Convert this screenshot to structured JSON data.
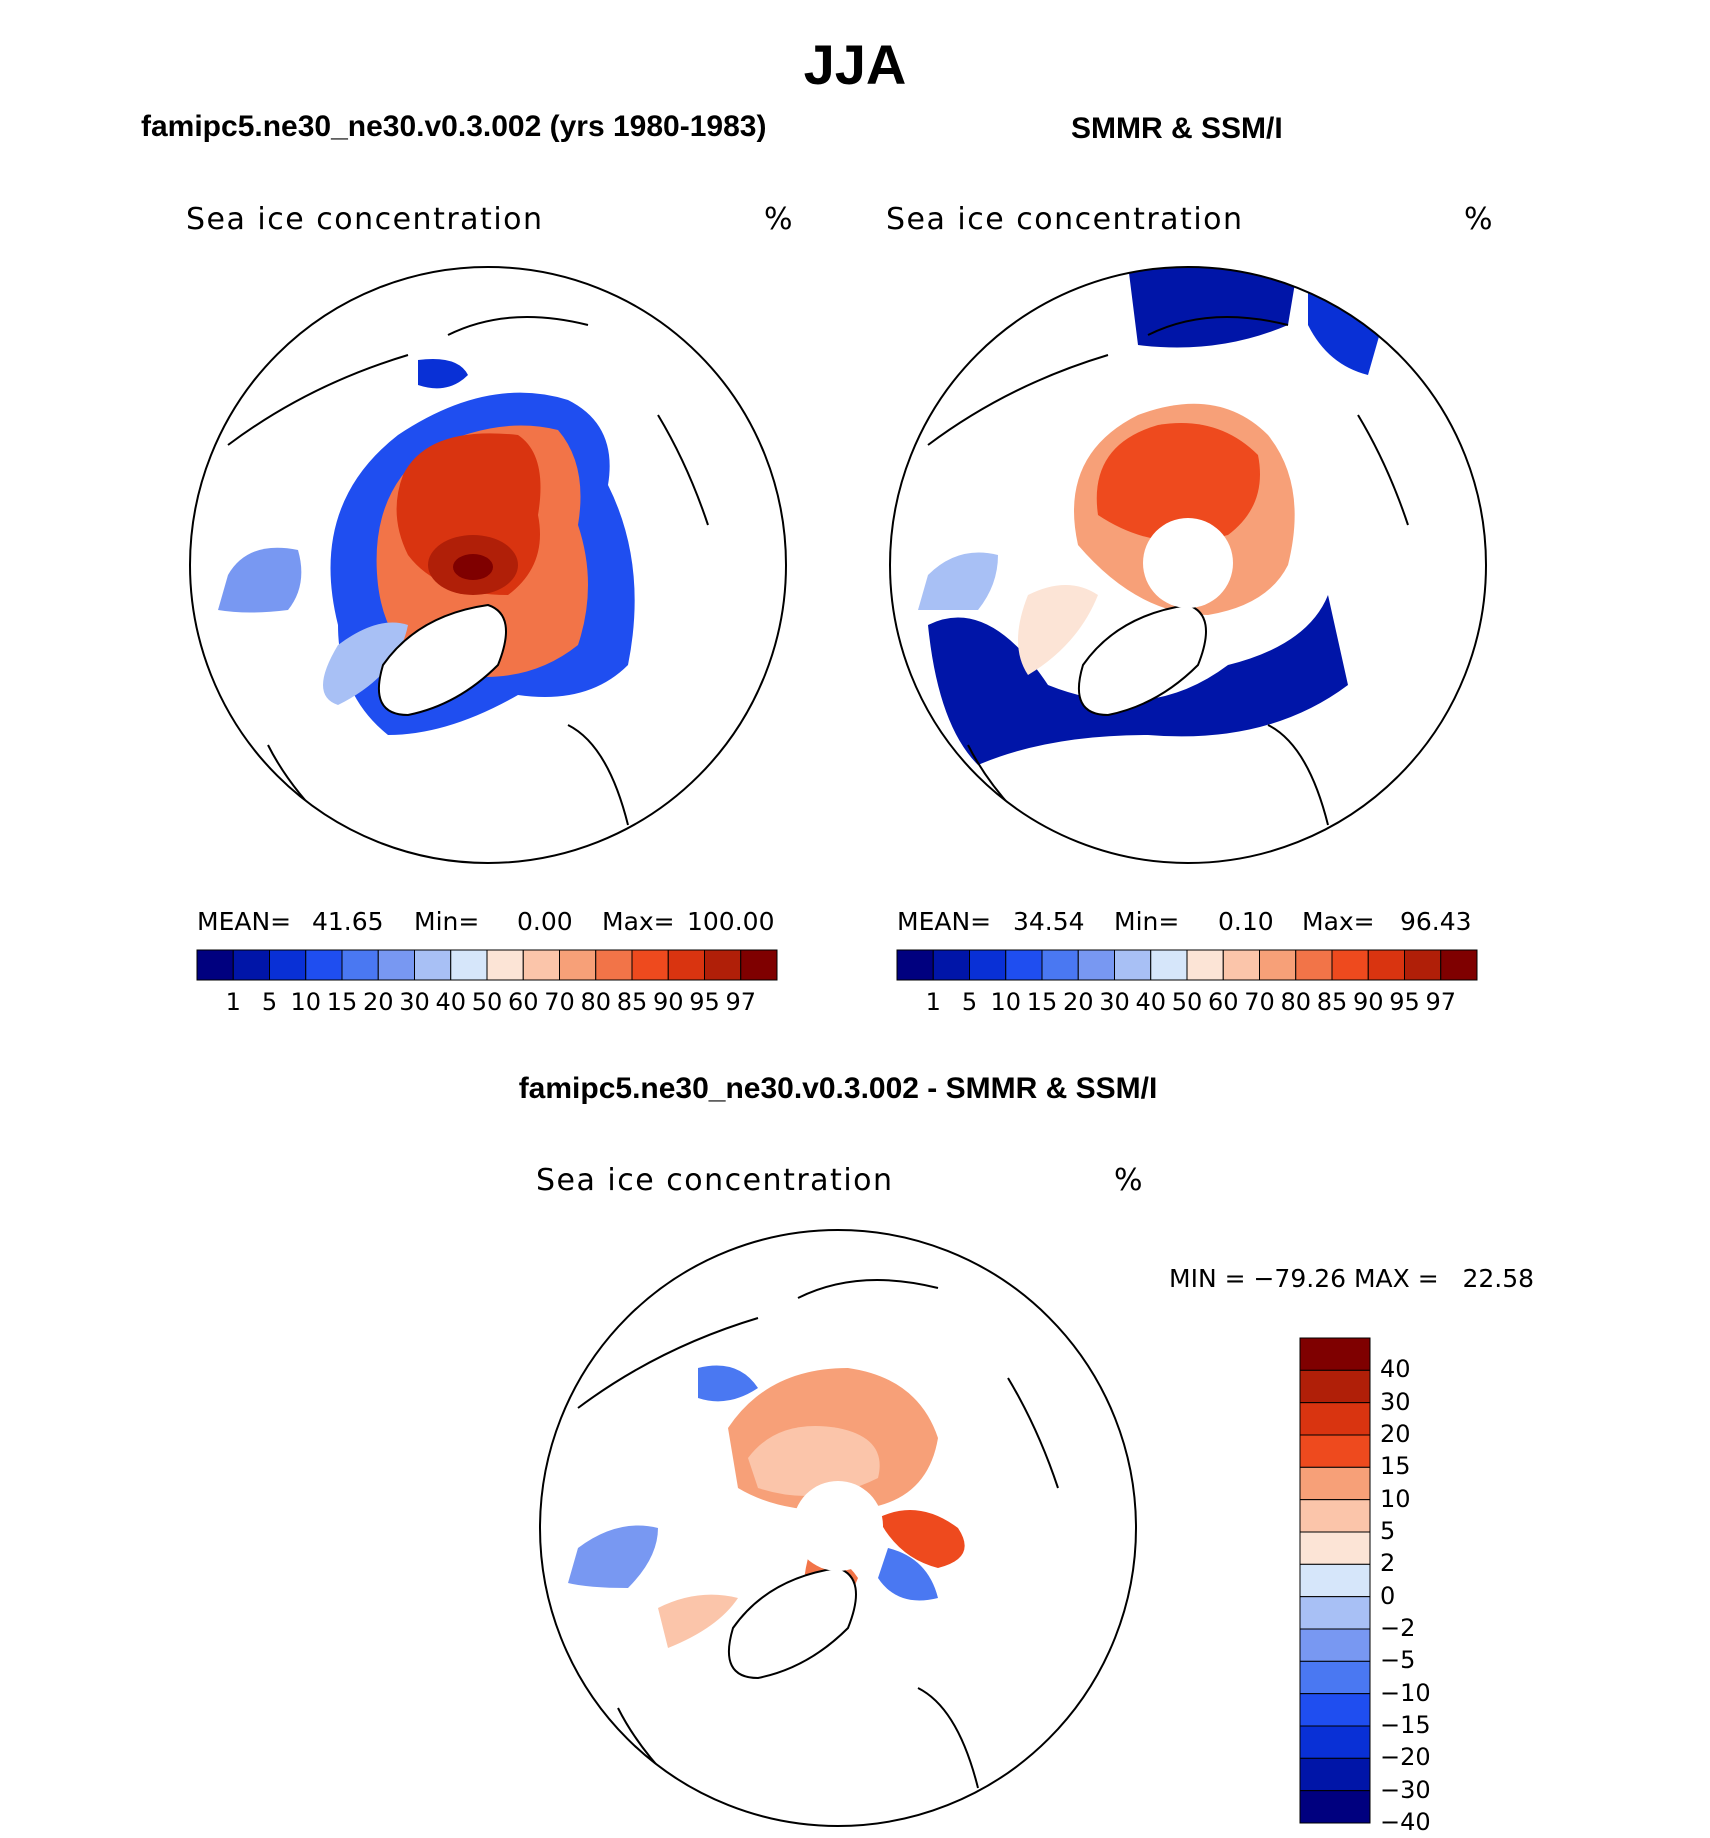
{
  "main_title": "JJA",
  "panels": [
    {
      "title": "famipc5.ne30_ne30.v0.3.002 (yrs 1980-1983)",
      "variable": "Sea ice concentration",
      "units": "%",
      "stats": {
        "mean_label": "MEAN=",
        "mean": "41.65",
        "min_label": "Min=",
        "min": "0.00",
        "max_label": "Max=",
        "max": "100.00"
      }
    },
    {
      "title": "SMMR & SSM/I",
      "variable": "Sea ice concentration",
      "units": "%",
      "stats": {
        "mean_label": "MEAN=",
        "mean": "34.54",
        "min_label": "Min=",
        "min": "0.10",
        "max_label": "Max=",
        "max": "96.43"
      }
    },
    {
      "title": "famipc5.ne30_ne30.v0.3.002 - SMMR & SSM/I",
      "variable": "Sea ice concentration",
      "units": "%",
      "stats": {
        "text": "MIN = −79.26 MAX =   22.58"
      }
    }
  ],
  "colorbar_abs": {
    "colors": [
      "#00007f",
      "#0015a8",
      "#0930d6",
      "#1f4ef0",
      "#4a78f2",
      "#7898f2",
      "#a8c0f5",
      "#d6e6fa",
      "#fce4d6",
      "#fbc5aa",
      "#f7a078",
      "#f27448",
      "#ee4a1e",
      "#d93410",
      "#b01f08",
      "#7f0000"
    ],
    "ticks": [
      "1",
      "5",
      "10",
      "15",
      "20",
      "30",
      "40",
      "50",
      "60",
      "70",
      "80",
      "85",
      "90",
      "95",
      "97"
    ]
  },
  "colorbar_diff": {
    "colors": [
      "#7f0000",
      "#b01f08",
      "#d93410",
      "#ee4a1e",
      "#f7a078",
      "#fbc5aa",
      "#fce4d6",
      "#d6e6fa",
      "#a8c0f5",
      "#7898f2",
      "#4a78f2",
      "#1f4ef0",
      "#0930d6",
      "#0015a8",
      "#00007f"
    ],
    "ticks": [
      "40",
      "30",
      "20",
      "15",
      "10",
      "5",
      "2",
      "0",
      "−2",
      "−5",
      "−10",
      "−15",
      "−20",
      "−30",
      "−40"
    ]
  }
}
